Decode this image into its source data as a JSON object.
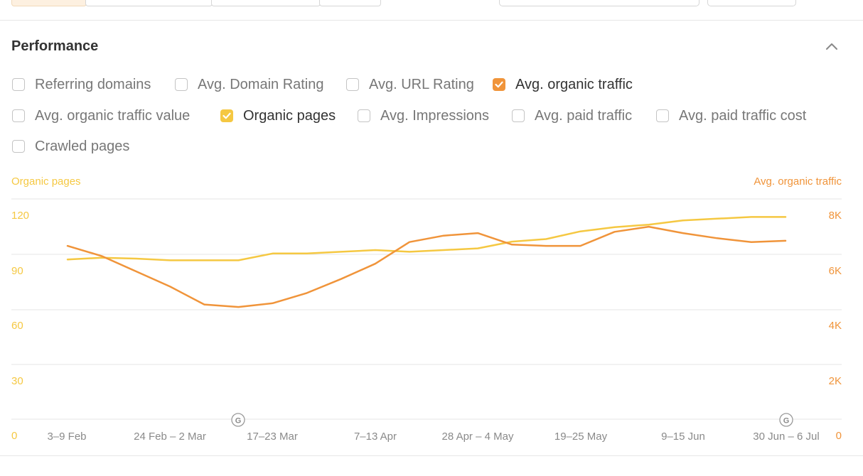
{
  "section": {
    "title": "Performance"
  },
  "metrics": [
    {
      "label": "Referring domains",
      "checked": false,
      "color": ""
    },
    {
      "label": "Avg. Domain Rating",
      "checked": false,
      "color": ""
    },
    {
      "label": "Avg. URL Rating",
      "checked": false,
      "color": ""
    },
    {
      "label": "Avg. organic traffic",
      "checked": true,
      "color": "#f0943a"
    },
    {
      "label": "Avg. organic traffic value",
      "checked": false,
      "color": ""
    },
    {
      "label": "Organic pages",
      "checked": true,
      "color": "#f5c842"
    },
    {
      "label": "Avg. Impressions",
      "checked": false,
      "color": ""
    },
    {
      "label": "Avg. paid traffic",
      "checked": false,
      "color": ""
    },
    {
      "label": "Avg. paid traffic cost",
      "checked": false,
      "color": ""
    },
    {
      "label": "Crawled pages",
      "checked": false,
      "color": ""
    }
  ],
  "chart_data": {
    "type": "line",
    "left_axis_title": "Organic pages",
    "right_axis_title": "Avg. organic traffic",
    "y_left_ticks": [
      "0",
      "30",
      "60",
      "90",
      "120"
    ],
    "y_right_ticks": [
      "0",
      "2K",
      "4K",
      "6K",
      "8K"
    ],
    "ylim_left": [
      0,
      120
    ],
    "ylim_right": [
      0,
      8000
    ],
    "x_tick_labels": [
      "3–9 Feb",
      "24 Feb – 2 Mar",
      "17–23 Mar",
      "7–13 Apr",
      "28 Apr – 4 May",
      "19–25 May",
      "9–15 Jun",
      "30 Jun – 6 Jul"
    ],
    "google_update_markers": [
      "17–23 Mar",
      "30 Jun – 6 Jul"
    ],
    "marker_glyph": "G",
    "grid": true,
    "series": [
      {
        "name": "Organic pages",
        "axis": "left",
        "color": "#f5c842",
        "values": [
          94,
          95,
          94.5,
          93.5,
          93.5,
          93.5,
          97.5,
          97.5,
          98.5,
          99.5,
          98.5,
          99.5,
          100.5,
          104.5,
          106,
          110.5,
          113,
          114.5,
          117,
          118,
          119,
          119
        ]
      },
      {
        "name": "Avg. organic traffic",
        "axis": "right",
        "color": "#f0943a",
        "values": [
          6800,
          6400,
          5800,
          5200,
          4500,
          4400,
          4550,
          4950,
          5500,
          6100,
          6950,
          7200,
          7300,
          6850,
          6800,
          6800,
          7350,
          7550,
          7300,
          7100,
          6950,
          7000
        ]
      }
    ]
  }
}
